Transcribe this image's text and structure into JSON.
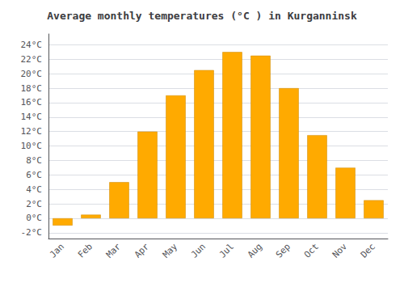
{
  "chart_data": {
    "type": "bar",
    "title": "Average monthly temperatures (°C ) in Kurganninsk",
    "categories": [
      "Jan",
      "Feb",
      "Mar",
      "Apr",
      "May",
      "Jun",
      "Jul",
      "Aug",
      "Sep",
      "Oct",
      "Nov",
      "Dec"
    ],
    "values": [
      -1.0,
      0.5,
      5.0,
      12.0,
      17.0,
      20.5,
      23.0,
      22.5,
      18.0,
      11.5,
      7.0,
      2.5
    ],
    "color": "#FFAA00",
    "ylim": [
      -2.8,
      25.5
    ],
    "yticks": [
      {
        "value": -2,
        "label": "-2°C"
      },
      {
        "value": 0,
        "label": "0°C"
      },
      {
        "value": 2,
        "label": "2°C"
      },
      {
        "value": 4,
        "label": "4°C"
      },
      {
        "value": 6,
        "label": "6°C"
      },
      {
        "value": 8,
        "label": "8°C"
      },
      {
        "value": 10,
        "label": "10°C"
      },
      {
        "value": 12,
        "label": "12°C"
      },
      {
        "value": 14,
        "label": "14°C"
      },
      {
        "value": 16,
        "label": "16°C"
      },
      {
        "value": 18,
        "label": "18°C"
      },
      {
        "value": 20,
        "label": "20°C"
      },
      {
        "value": 22,
        "label": "22°C"
      },
      {
        "value": 24,
        "label": "24°C"
      }
    ],
    "grid": true
  }
}
